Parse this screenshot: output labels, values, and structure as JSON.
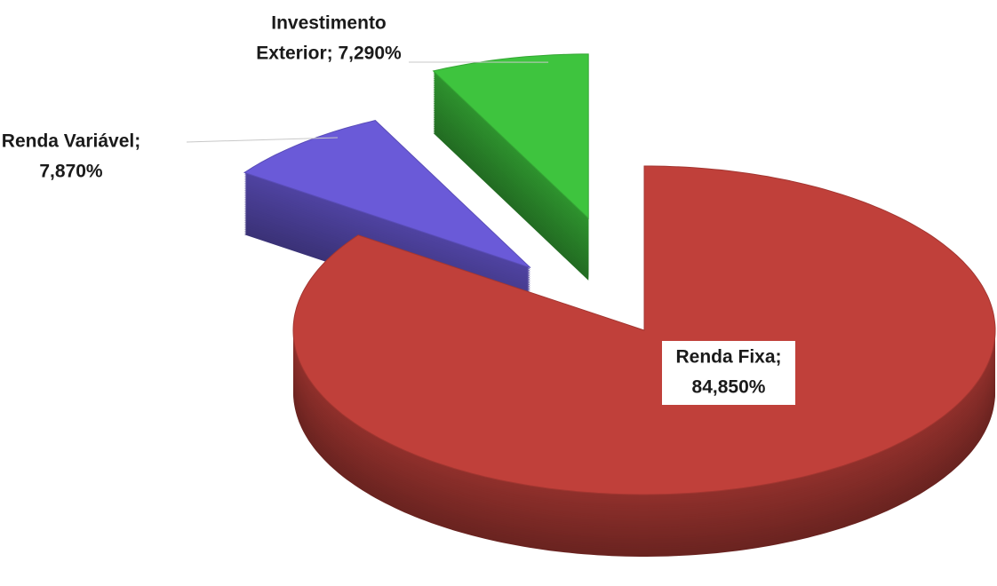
{
  "chart_data": {
    "type": "pie3d",
    "values": [
      84.85,
      7.87,
      7.29
    ],
    "value_labels": [
      [
        "Renda Fixa;",
        "84,850%"
      ],
      [
        "Renda Variável;",
        "7,870%"
      ],
      [
        "Investimento",
        "Exterior; 7,290%"
      ]
    ],
    "colors": [
      "#c0403a",
      "#6a5ad8",
      "#3ec43e"
    ]
  }
}
